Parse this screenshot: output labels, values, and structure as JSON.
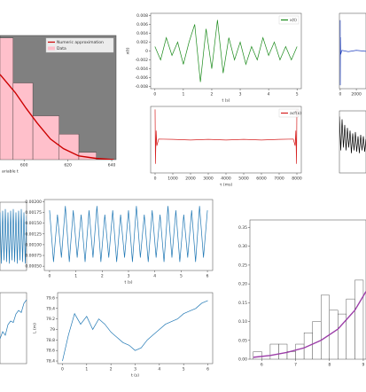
{
  "chart_data": [
    {
      "type": "histogram",
      "name": "Data",
      "color": "#ffc0cb",
      "background": "#808080",
      "bins": [
        589,
        595,
        604,
        616,
        625,
        633
      ],
      "values": [
        1.0,
        0.63,
        0.36,
        0.21,
        0.06
      ],
      "series": [
        {
          "name": "Numeric approximation",
          "color": "#cc0000",
          "x": [
            589,
            596,
            601,
            606,
            612,
            618,
            625,
            633,
            641
          ],
          "values": [
            0.7,
            0.55,
            0.42,
            0.3,
            0.17,
            0.09,
            0.03,
            0.01,
            0
          ]
        }
      ],
      "xlim": [
        589,
        642
      ],
      "ylim": [
        0,
        1.02
      ],
      "xticks": [
        600,
        620,
        640
      ],
      "xlabel": "ariable t"
    },
    {
      "type": "line",
      "xlim": [
        -0.15,
        5.15
      ],
      "ylim": [
        -0.0085,
        0.0085
      ],
      "yticks": [
        -0.008,
        -0.006,
        -0.004,
        -0.002,
        0,
        0.002,
        0.004,
        0.006,
        0.008
      ],
      "xticks": [
        0,
        1,
        2,
        3,
        4,
        5
      ],
      "xlabel": "t (s)",
      "ylabel": "x(t)",
      "series": [
        {
          "name": "x(t)",
          "color": "#1a8a1a",
          "x": [
            0,
            0.2,
            0.4,
            0.6,
            0.8,
            1,
            1.2,
            1.4,
            1.6,
            1.8,
            2,
            2.2,
            2.4,
            2.6,
            2.8,
            3,
            3.2,
            3.4,
            3.6,
            3.8,
            4,
            4.2,
            4.4,
            4.6,
            4.8,
            5
          ],
          "values": [
            0.001,
            -0.002,
            0.003,
            -0.001,
            0.002,
            -0.003,
            0.002,
            0.006,
            -0.007,
            0.005,
            -0.004,
            0.007,
            -0.005,
            0.003,
            -0.002,
            0.002,
            -0.003,
            0.001,
            -0.002,
            0.003,
            -0.001,
            0.002,
            -0.002,
            0.001,
            -0.002,
            0.001
          ]
        }
      ]
    },
    {
      "type": "line",
      "xlim": [
        -250,
        8250
      ],
      "ylim": [
        -1.1,
        1.1
      ],
      "xticks": [
        0,
        1000,
        2000,
        3000,
        4000,
        5000,
        6000,
        7000,
        8000
      ],
      "xlabel": "τ (ms)",
      "series": [
        {
          "name": "acf(x)",
          "color": "#d62020",
          "x": [
            0,
            20,
            60,
            100,
            200,
            1000,
            2000,
            3000,
            4000,
            5000,
            6000,
            7000,
            7800,
            7900,
            7940,
            7980,
            8000
          ],
          "values": [
            1,
            -0.8,
            0.3,
            -0.2,
            0.02,
            0.01,
            -0.01,
            0.01,
            -0.01,
            0.01,
            -0.01,
            0.01,
            0.02,
            -0.2,
            0.3,
            -0.8,
            1
          ]
        }
      ]
    },
    {
      "type": "line",
      "xlim": [
        -100,
        3200
      ],
      "ylim": [
        -1.1,
        1.1
      ],
      "xticks": [
        0,
        2000
      ],
      "series": [
        {
          "color": "#1f3fbf",
          "x": [
            0,
            10,
            30,
            60,
            200,
            1000,
            2000,
            3200
          ],
          "values": [
            0.9,
            -1,
            0.4,
            -0.1,
            0.02,
            -0.02,
            0.02,
            -0.01
          ]
        }
      ]
    },
    {
      "type": "line",
      "xlim": [
        0,
        1
      ],
      "ylim": [
        -1.1,
        1.1
      ],
      "series": [
        {
          "color": "#000000",
          "x": [
            0,
            0.05,
            0.1,
            0.15,
            0.2,
            0.25,
            0.3,
            0.35,
            0.4,
            0.45,
            0.5,
            0.55,
            0.6,
            0.65,
            0.7,
            0.75,
            0.8,
            0.85,
            0.9,
            0.95,
            1
          ],
          "values": [
            0.9,
            -0.3,
            0.8,
            -0.2,
            0.6,
            -0.3,
            0.5,
            -0.2,
            0.4,
            -0.4,
            0.3,
            -0.3,
            0.35,
            -0.35,
            0.2,
            -0.4,
            0.25,
            -0.3,
            0.2,
            -0.35,
            0.1
          ]
        }
      ]
    },
    {
      "type": "line",
      "xlim": [
        0,
        1
      ],
      "ylim": [
        -1,
        1
      ],
      "series": [
        {
          "color": "#1f77b4",
          "x": [
            0,
            0.05,
            0.1,
            0.15,
            0.2,
            0.25,
            0.3,
            0.35,
            0.4,
            0.45,
            0.5,
            0.55,
            0.6,
            0.65,
            0.7,
            0.75,
            0.8,
            0.85,
            0.9,
            0.95,
            1
          ],
          "values": [
            0.7,
            -0.8,
            0.75,
            -0.7,
            0.8,
            -0.75,
            0.7,
            -0.8,
            0.75,
            -0.7,
            0.8,
            -0.75,
            0.7,
            -0.8,
            0.75,
            -0.7,
            0.8,
            -0.75,
            0.7,
            -0.8,
            0.6
          ]
        }
      ]
    },
    {
      "type": "line",
      "xlim": [
        -0.2,
        6.2
      ],
      "ylim": [
        0.0004,
        0.00205
      ],
      "yticks": [
        {
          "value": 0.0005,
          "label": "0.00050"
        },
        {
          "value": 0.00075,
          "label": "0.00075"
        },
        {
          "value": 0.001,
          "label": "0.00100"
        },
        {
          "value": 0.00125,
          "label": "0.00125"
        },
        {
          "value": 0.0015,
          "label": "0.00150"
        },
        {
          "value": 0.00175,
          "label": "0.00175"
        },
        {
          "value": 0.002,
          "label": "0.00200"
        }
      ],
      "xticks": [
        0,
        1,
        2,
        3,
        4,
        5,
        6
      ],
      "xlabel": "t (s)",
      "series": [
        {
          "color": "#1f77b4",
          "x": [
            0,
            0.15,
            0.3,
            0.45,
            0.6,
            0.75,
            0.9,
            1.05,
            1.2,
            1.35,
            1.5,
            1.65,
            1.8,
            1.95,
            2.1,
            2.25,
            2.4,
            2.55,
            2.7,
            2.85,
            3,
            3.15,
            3.3,
            3.45,
            3.6,
            3.75,
            3.9,
            4.05,
            4.2,
            4.35,
            4.5,
            4.65,
            4.8,
            4.95,
            5.1,
            5.25,
            5.4,
            5.55,
            5.7,
            5.85,
            6
          ],
          "values": [
            0.0018,
            0.0006,
            0.0017,
            0.0007,
            0.0019,
            0.0006,
            0.0018,
            0.0007,
            0.0017,
            0.0006,
            0.0018,
            0.0007,
            0.0019,
            0.0006,
            0.0017,
            0.0007,
            0.0018,
            0.0006,
            0.0017,
            0.0007,
            0.0018,
            0.0006,
            0.0019,
            0.0007,
            0.0017,
            0.0006,
            0.0018,
            0.0007,
            0.0017,
            0.0006,
            0.0019,
            0.0007,
            0.0018,
            0.0006,
            0.0017,
            0.0007,
            0.0018,
            0.0006,
            0.0019,
            0.0007,
            0.0018
          ]
        }
      ]
    },
    {
      "type": "line",
      "xlim": [
        0,
        1
      ],
      "ylim": [
        0,
        1
      ],
      "series": [
        {
          "color": "#1f77b4",
          "x": [
            0,
            0.1,
            0.2,
            0.3,
            0.4,
            0.5,
            0.6,
            0.7,
            0.8,
            0.9,
            1
          ],
          "values": [
            0.35,
            0.45,
            0.4,
            0.55,
            0.6,
            0.58,
            0.7,
            0.75,
            0.72,
            0.85,
            0.9
          ]
        }
      ]
    },
    {
      "type": "line",
      "xlim": [
        -0.2,
        6.2
      ],
      "ylim": [
        78.35,
        79.7
      ],
      "yticks": [
        78.4,
        78.6,
        78.8,
        79.0,
        79.2,
        79.4,
        79.6
      ],
      "xticks": [
        0,
        1,
        2,
        3,
        4,
        5,
        6
      ],
      "xlabel": "t (s)",
      "ylabel": "L (m)",
      "series": [
        {
          "color": "#1f77b4",
          "x": [
            0,
            0.25,
            0.5,
            0.75,
            1,
            1.25,
            1.5,
            1.75,
            2,
            2.25,
            2.5,
            2.75,
            3,
            3.25,
            3.5,
            3.75,
            4,
            4.25,
            4.5,
            4.75,
            5,
            5.25,
            5.5,
            5.75,
            6
          ],
          "values": [
            78.4,
            78.9,
            79.3,
            79.1,
            79.25,
            79.0,
            79.2,
            79.1,
            78.95,
            78.85,
            78.75,
            78.7,
            78.6,
            78.65,
            78.8,
            78.9,
            79.0,
            79.1,
            79.15,
            79.2,
            79.3,
            79.35,
            79.4,
            79.5,
            79.55
          ]
        }
      ]
    },
    {
      "type": "histogram",
      "color": "#ffffff",
      "bins": [
        5.75,
        6,
        6.25,
        6.5,
        6.75,
        7,
        7.25,
        7.5,
        7.75,
        8,
        8.25,
        8.5,
        8.75,
        9
      ],
      "values": [
        0.02,
        0,
        0.04,
        0.04,
        0.02,
        0.04,
        0.07,
        0.1,
        0.17,
        0.13,
        0.12,
        0.16,
        0.21
      ],
      "series": [
        {
          "color": "#9c3fa8",
          "x": [
            5.75,
            6.25,
            6.75,
            7.25,
            7.75,
            8.25,
            8.75,
            9.08
          ],
          "values": [
            0.005,
            0.01,
            0.018,
            0.03,
            0.05,
            0.08,
            0.13,
            0.18
          ]
        }
      ],
      "xlim": [
        5.65,
        9.08
      ],
      "ylim": [
        0,
        0.37
      ],
      "yticks": [
        {
          "value": 0,
          "label": "0.00"
        },
        {
          "value": 0.05,
          "label": "0.05"
        },
        {
          "value": 0.1,
          "label": "0.10"
        },
        {
          "value": 0.15,
          "label": "0.15"
        },
        {
          "value": 0.2,
          "label": "0.20"
        },
        {
          "value": 0.25,
          "label": "0.25"
        },
        {
          "value": 0.3,
          "label": "0.30"
        },
        {
          "value": 0.35,
          "label": "0.35"
        }
      ],
      "xticks": [
        6,
        7,
        8,
        9
      ]
    }
  ]
}
